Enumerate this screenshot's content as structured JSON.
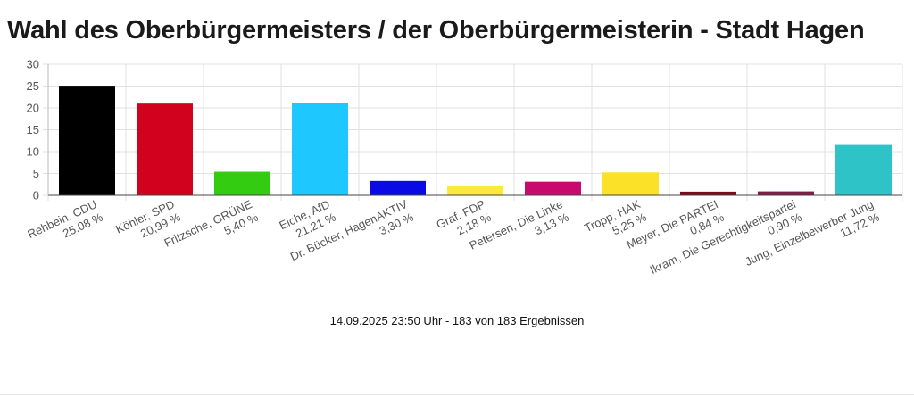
{
  "title": "Wahl des Oberbürgermeisters / der Oberbürgermeisterin - Stadt Hagen",
  "footer": "14.09.2025 23:50 Uhr - 183 von 183 Ergebnissen",
  "chart_data": {
    "type": "bar",
    "title": "Wahl des Oberbürgermeisters / der Oberbürgermeisterin - Stadt Hagen",
    "xlabel": "",
    "ylabel": "",
    "ylim": [
      0,
      30
    ],
    "yticks": [
      0,
      5,
      10,
      15,
      20,
      25,
      30
    ],
    "grid": true,
    "categories": [
      "Rehbein, CDU",
      "Köhler, SPD",
      "Fritzsche, GRÜNE",
      "Eiche, AfD",
      "Dr. Bücker, HagenAKTIV",
      "Graf, FDP",
      "Petersen, Die Linke",
      "Tropp, HAK",
      "Meyer, Die PARTEI",
      "Ikram, Die Gerechtigkeitspartei",
      "Jung, Einzelbewerber Jung"
    ],
    "values": [
      25.08,
      20.99,
      5.4,
      21.21,
      3.3,
      2.18,
      3.13,
      5.25,
      0.84,
      0.9,
      11.72
    ],
    "value_labels": [
      "25,08 %",
      "20,99 %",
      "5,40 %",
      "21,21 %",
      "3,30 %",
      "2,18 %",
      "3,13 %",
      "5,25 %",
      "0,84 %",
      "0,90 %",
      "11,72 %"
    ],
    "colors": [
      "#000000",
      "#d1021e",
      "#33cc11",
      "#1ec8ff",
      "#0a0ae6",
      "#fbea3a",
      "#c80a6e",
      "#fbe228",
      "#7b0a1c",
      "#821a46",
      "#2ec4c7"
    ]
  }
}
